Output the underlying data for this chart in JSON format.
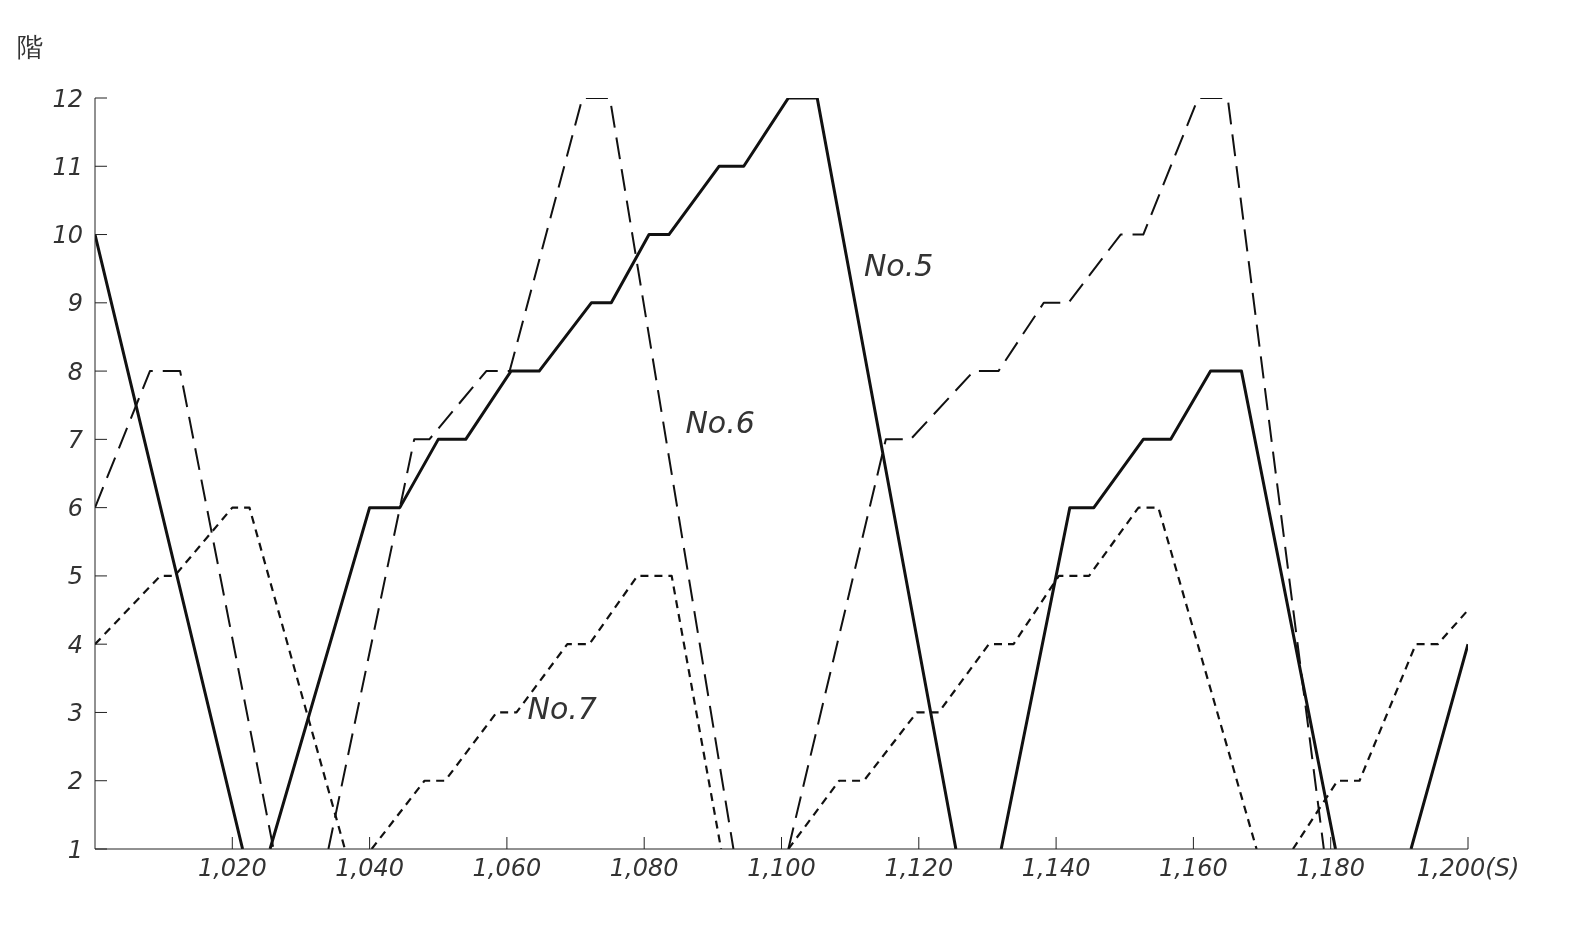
{
  "chart_data": {
    "type": "line",
    "ylabel": "階",
    "xlim": [
      1000,
      1200
    ],
    "ylim": [
      1,
      12
    ],
    "xticks": [
      {
        "value": 1020,
        "label": "1,020"
      },
      {
        "value": 1040,
        "label": "1,040"
      },
      {
        "value": 1060,
        "label": "1,060"
      },
      {
        "value": 1080,
        "label": "1,080"
      },
      {
        "value": 1100,
        "label": "1,100"
      },
      {
        "value": 1120,
        "label": "1,120"
      },
      {
        "value": 1140,
        "label": "1,140"
      },
      {
        "value": 1160,
        "label": "1,160"
      },
      {
        "value": 1180,
        "label": "1,180"
      },
      {
        "value": 1200,
        "label": "1,200(S)"
      }
    ],
    "yticks": [
      1,
      2,
      3,
      4,
      5,
      6,
      7,
      8,
      9,
      10,
      11,
      12
    ],
    "series": [
      {
        "name": "No.5",
        "color": "#111111",
        "line_style": "solid",
        "x": [
          1000,
          1021.5,
          1023.5,
          1025.5,
          1040,
          1044.4,
          1050,
          1054,
          1060.6,
          1064.7,
          1072.3,
          1075.2,
          1080.7,
          1083.6,
          1090.9,
          1094.5,
          1101,
          1105.2,
          1125.4,
          1128.7,
          1132,
          1142,
          1145.5,
          1152.7,
          1156.7,
          1162.5,
          1167,
          1180.7,
          1186.2,
          1191.7,
          1200
        ],
        "values": [
          10,
          1,
          null,
          1,
          6,
          6,
          7,
          7,
          8,
          8,
          9,
          9,
          10,
          10,
          11,
          11,
          12,
          12,
          1,
          null,
          1,
          6,
          6,
          7,
          7,
          8,
          8,
          1,
          null,
          1,
          4
        ]
      },
      {
        "name": "No.6",
        "color": "#111111",
        "line_style": "dashed",
        "x": [
          1000,
          1008,
          1012.4,
          1026,
          1030,
          1034,
          1046.5,
          1048.7,
          1057,
          1060.4,
          1071,
          1075,
          1093,
          1097,
          1101,
          1115.2,
          1118.8,
          1128,
          1131.6,
          1138.2,
          1141.8,
          1149.4,
          1152.7,
          1160.7,
          1165,
          1179
        ],
        "values": [
          6,
          8,
          8,
          1,
          null,
          1,
          7,
          7,
          8,
          8,
          12,
          12,
          1,
          null,
          1,
          7,
          7,
          8,
          8,
          9,
          9,
          10,
          10,
          12,
          12,
          1
        ]
      },
      {
        "name": "No.7",
        "color": "#111111",
        "line_style": "dotted",
        "x": [
          1000,
          1009.5,
          1011.6,
          1020,
          1022.5,
          1036.4,
          1038.4,
          1040.3,
          1048,
          1051,
          1058.5,
          1061.4,
          1068.8,
          1072,
          1079,
          1084,
          1091.2,
          1096,
          1101,
          1108.4,
          1112,
          1119.7,
          1122.9,
          1130.2,
          1133.8,
          1140.4,
          1144.8,
          1152,
          1154.9,
          1169.2,
          1172,
          1174.5,
          1181,
          1184.2,
          1192.4,
          1195.6,
          1200
        ],
        "values": [
          4,
          5,
          5,
          6,
          6,
          1,
          null,
          1,
          2,
          2,
          3,
          3,
          4,
          4,
          5,
          5,
          1,
          null,
          1,
          2,
          2,
          3,
          3,
          4,
          4,
          5,
          5,
          6,
          6,
          1,
          null,
          1,
          2,
          2,
          4,
          4,
          4.5
        ]
      }
    ]
  }
}
